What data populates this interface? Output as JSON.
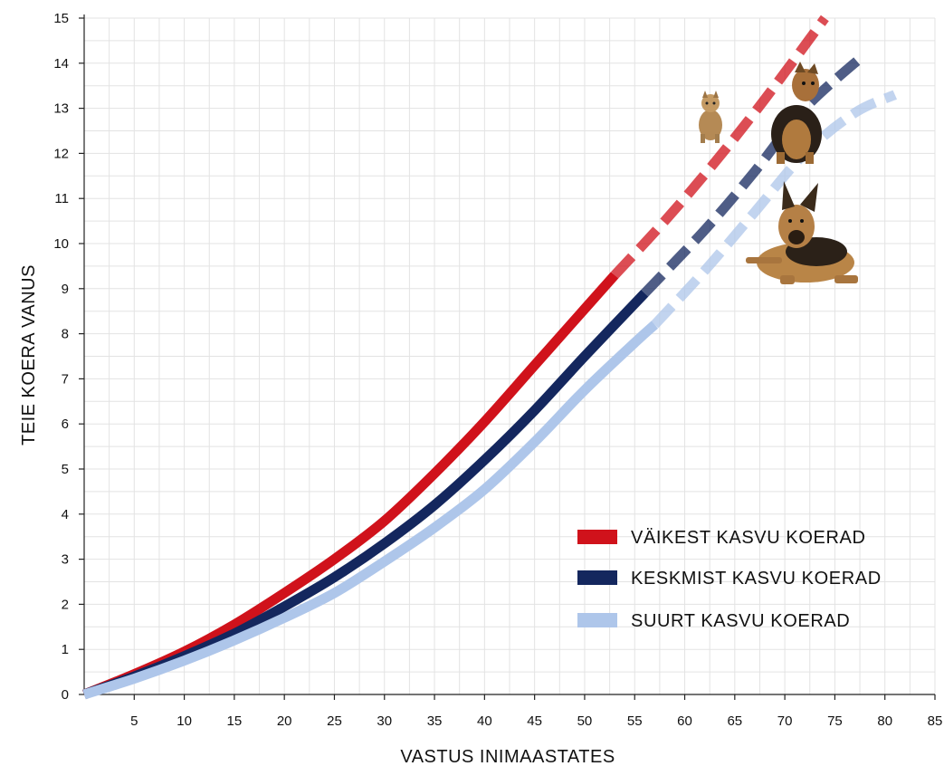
{
  "chart_data": {
    "type": "line",
    "xlabel": "VASTUS INIMAASTATES",
    "ylabel": "TEIE KOERA VANUS",
    "xlim": [
      0,
      85
    ],
    "ylim": [
      0,
      15
    ],
    "x_ticks": [
      "5",
      "10",
      "15",
      "20",
      "25",
      "30",
      "35",
      "40",
      "45",
      "50",
      "55",
      "60",
      "65",
      "70",
      "75",
      "80",
      "85"
    ],
    "y_ticks": [
      "0",
      "1",
      "2",
      "3",
      "4",
      "5",
      "6",
      "7",
      "8",
      "9",
      "10",
      "11",
      "12",
      "13",
      "14",
      "15"
    ],
    "grid": true,
    "legend_position": "bottom-right",
    "series": [
      {
        "name": "VÄIKEST KASVU KOERAD",
        "color": "#d0121b",
        "solid": [
          [
            0,
            0
          ],
          [
            5,
            0.45
          ],
          [
            10,
            0.95
          ],
          [
            15,
            1.55
          ],
          [
            20,
            2.25
          ],
          [
            25,
            3.0
          ],
          [
            30,
            3.85
          ],
          [
            35,
            4.9
          ],
          [
            40,
            6.05
          ],
          [
            45,
            7.3
          ],
          [
            50,
            8.55
          ],
          [
            53,
            9.3
          ]
        ],
        "dashed": [
          [
            53,
            9.3
          ],
          [
            58,
            10.5
          ],
          [
            63,
            11.8
          ],
          [
            68,
            13.2
          ],
          [
            74,
            15.0
          ]
        ]
      },
      {
        "name": "KESKMIST KASVU KOERAD",
        "color": "#14275e",
        "solid": [
          [
            0,
            0
          ],
          [
            5,
            0.4
          ],
          [
            10,
            0.85
          ],
          [
            15,
            1.35
          ],
          [
            20,
            1.95
          ],
          [
            25,
            2.6
          ],
          [
            30,
            3.35
          ],
          [
            35,
            4.2
          ],
          [
            40,
            5.2
          ],
          [
            45,
            6.3
          ],
          [
            50,
            7.5
          ],
          [
            56,
            8.9
          ]
        ],
        "dashed": [
          [
            56,
            8.9
          ],
          [
            62,
            10.3
          ],
          [
            67,
            11.6
          ],
          [
            72,
            13.0
          ],
          [
            78,
            14.2
          ]
        ]
      },
      {
        "name": "SUURT KASVU KOERAD",
        "color": "#aec6ea",
        "solid": [
          [
            0,
            0
          ],
          [
            5,
            0.35
          ],
          [
            10,
            0.75
          ],
          [
            15,
            1.2
          ],
          [
            20,
            1.7
          ],
          [
            25,
            2.25
          ],
          [
            30,
            2.95
          ],
          [
            35,
            3.7
          ],
          [
            40,
            4.55
          ],
          [
            45,
            5.6
          ],
          [
            50,
            6.75
          ],
          [
            55,
            7.8
          ],
          [
            57,
            8.2
          ]
        ],
        "dashed": [
          [
            57,
            8.2
          ],
          [
            62,
            9.4
          ],
          [
            67,
            10.7
          ],
          [
            72,
            12.0
          ],
          [
            77,
            12.9
          ],
          [
            81,
            13.3
          ]
        ]
      }
    ]
  },
  "decorations": {
    "images": [
      "small-dog-icon",
      "medium-dog-icon",
      "large-dog-icon"
    ]
  }
}
